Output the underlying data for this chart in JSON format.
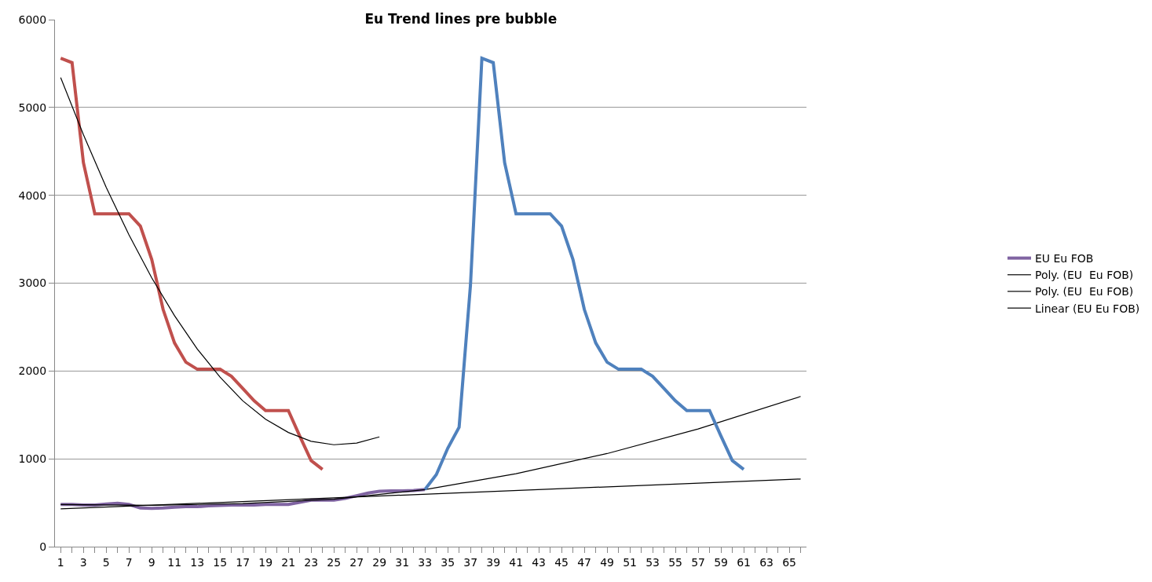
{
  "chart_data": {
    "type": "line",
    "title": "Eu Trend lines pre bubble",
    "xlim": [
      0.5,
      66.5
    ],
    "xticks": [
      1,
      {
        "value": 2,
        "label": null
      },
      3,
      {
        "value": 4,
        "label": null
      },
      5,
      {
        "value": 6,
        "label": null
      },
      7,
      {
        "value": 8,
        "label": null
      },
      9,
      {
        "value": 10,
        "label": null
      },
      11,
      {
        "value": 12,
        "label": null
      },
      13,
      {
        "value": 14,
        "label": null
      },
      15,
      {
        "value": 16,
        "label": null
      },
      17,
      {
        "value": 18,
        "label": null
      },
      19,
      {
        "value": 20,
        "label": null
      },
      21,
      {
        "value": 22,
        "label": null
      },
      23,
      {
        "value": 24,
        "label": null
      },
      25,
      {
        "value": 26,
        "label": null
      },
      27,
      {
        "value": 28,
        "label": null
      },
      29,
      {
        "value": 30,
        "label": null
      },
      31,
      {
        "value": 32,
        "label": null
      },
      33,
      {
        "value": 34,
        "label": null
      },
      35,
      {
        "value": 36,
        "label": null
      },
      37,
      {
        "value": 38,
        "label": null
      },
      39,
      {
        "value": 40,
        "label": null
      },
      41,
      {
        "value": 42,
        "label": null
      },
      43,
      {
        "value": 44,
        "label": null
      },
      45,
      {
        "value": 46,
        "label": null
      },
      47,
      {
        "value": 48,
        "label": null
      },
      49,
      {
        "value": 50,
        "label": null
      },
      51,
      {
        "value": 52,
        "label": null
      },
      53,
      {
        "value": 54,
        "label": null
      },
      55,
      {
        "value": 56,
        "label": null
      },
      57,
      {
        "value": 58,
        "label": null
      },
      59,
      {
        "value": 60,
        "label": null
      },
      61,
      {
        "value": 62,
        "label": null
      },
      63,
      {
        "value": 64,
        "label": null
      },
      65,
      {
        "value": 66,
        "label": null
      }
    ],
    "ylim": [
      0,
      6000
    ],
    "yticks": [
      0,
      1000,
      2000,
      3000,
      4000,
      5000,
      6000
    ],
    "grid": "y",
    "legend": "right",
    "marker": "none",
    "line_style": "solid",
    "series": [
      {
        "color": "#c0504d",
        "x": [
          1,
          2,
          3,
          4,
          5,
          6,
          7,
          8,
          9,
          10,
          11,
          12,
          13,
          14,
          15,
          16,
          17,
          18,
          19,
          20,
          21,
          22,
          23,
          24
        ],
        "values": [
          5560,
          5510,
          4370,
          3790,
          3790,
          3790,
          3790,
          3650,
          3270,
          2700,
          2320,
          2100,
          2020,
          2020,
          2020,
          1940,
          1800,
          1660,
          1550,
          1550,
          1550,
          1260,
          980,
          880
        ]
      },
      {
        "name": "EU Eu FOB",
        "color": "#8064a2",
        "x": [
          1,
          2,
          3,
          4,
          5,
          6,
          7,
          8,
          9,
          10,
          11,
          12,
          13,
          14,
          15,
          16,
          17,
          18,
          19,
          20,
          21,
          22,
          23,
          24,
          25,
          26,
          27,
          28,
          29,
          30,
          31,
          32,
          33
        ],
        "values": [
          480,
          480,
          475,
          475,
          485,
          495,
          480,
          440,
          435,
          440,
          450,
          455,
          455,
          465,
          470,
          475,
          475,
          475,
          480,
          480,
          480,
          505,
          530,
          530,
          530,
          550,
          580,
          610,
          630,
          635,
          635,
          640,
          650
        ]
      },
      {
        "name": "Poly. (EU  Eu FOB)",
        "color": "#000000",
        "x": [
          1,
          3,
          5,
          7,
          9,
          11,
          13,
          15,
          17,
          19,
          21,
          23,
          25,
          27,
          29
        ],
        "values": [
          5340,
          4690,
          4090,
          3550,
          3060,
          2630,
          2250,
          1930,
          1660,
          1450,
          1300,
          1200,
          1160,
          1180,
          1250
        ]
      },
      {
        "name": "Poly. (EU  Eu FOB)",
        "color": "#000000",
        "x": [
          1,
          9,
          17,
          25,
          33,
          41,
          49,
          57,
          66
        ],
        "values": [
          480,
          470,
          490,
          540,
          650,
          830,
          1060,
          1340,
          1710
        ]
      },
      {
        "name": "Linear (EU Eu FOB)",
        "color": "#000000",
        "x": [
          1,
          66
        ],
        "values": [
          430,
          770
        ]
      },
      {
        "color": "#4f81bd",
        "x": [
          33,
          34,
          35,
          36,
          37,
          38,
          39,
          40,
          41,
          42,
          43,
          44,
          45,
          46,
          47,
          48,
          49,
          50,
          51,
          52,
          53,
          54,
          55,
          56,
          57,
          58,
          59,
          60,
          61
        ],
        "values": [
          650,
          820,
          1120,
          1360,
          2980,
          5560,
          5510,
          4370,
          3790,
          3790,
          3790,
          3790,
          3650,
          3270,
          2700,
          2320,
          2100,
          2020,
          2020,
          2020,
          1940,
          1800,
          1660,
          1550,
          1550,
          1550,
          1260,
          980,
          880
        ]
      }
    ]
  }
}
